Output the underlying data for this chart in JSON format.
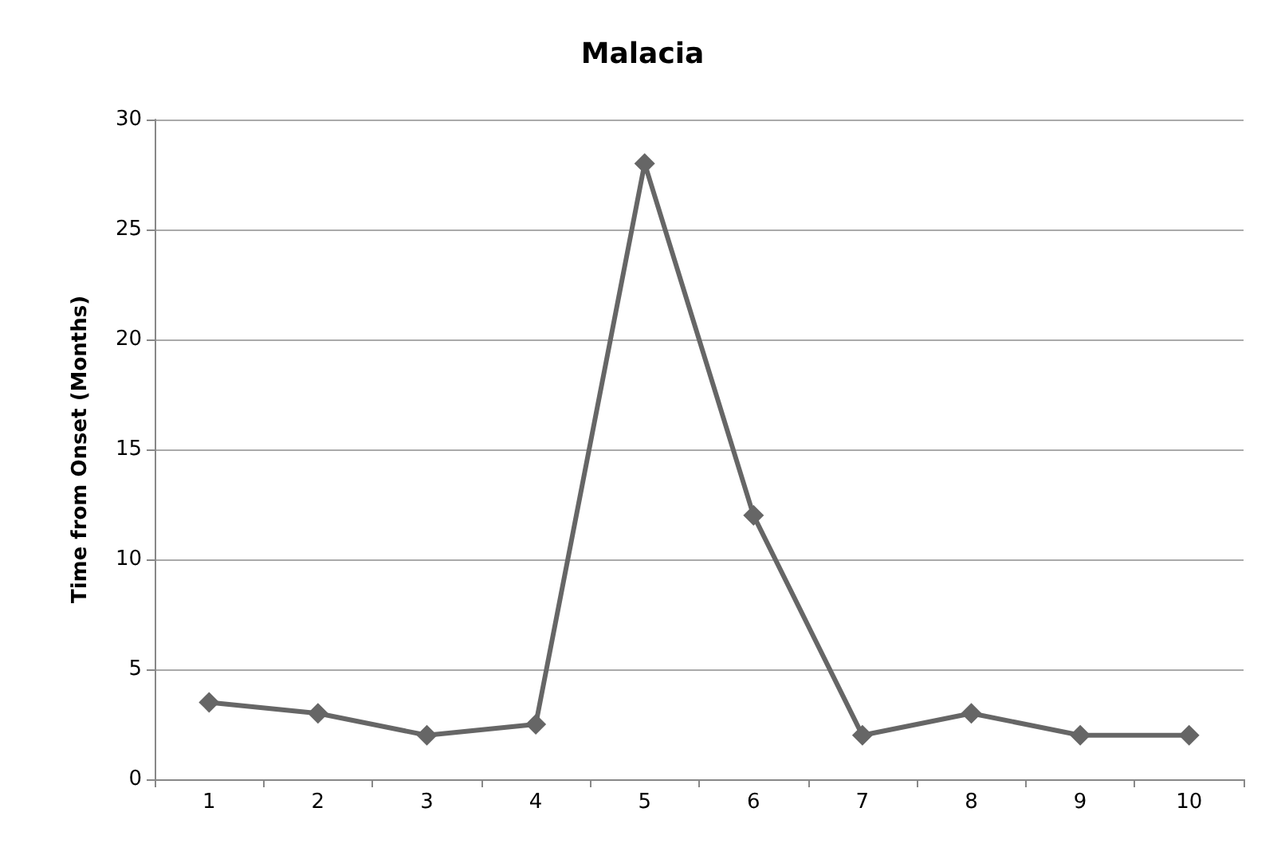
{
  "chart_data": {
    "type": "line",
    "title": "Malacia",
    "ylabel": "Time from Onset (Months)",
    "categories": [
      "1",
      "2",
      "3",
      "4",
      "5",
      "6",
      "7",
      "8",
      "9",
      "10"
    ],
    "series": [
      {
        "color": "#666666",
        "values": [
          3.5,
          3,
          2,
          2.5,
          28,
          12,
          2,
          3,
          2,
          2
        ]
      }
    ],
    "ylim": [
      0,
      30
    ],
    "yticks": [
      0,
      5,
      10,
      15,
      20,
      25,
      30
    ],
    "grid": "y",
    "marker": "diamond",
    "line_style": "solid"
  }
}
